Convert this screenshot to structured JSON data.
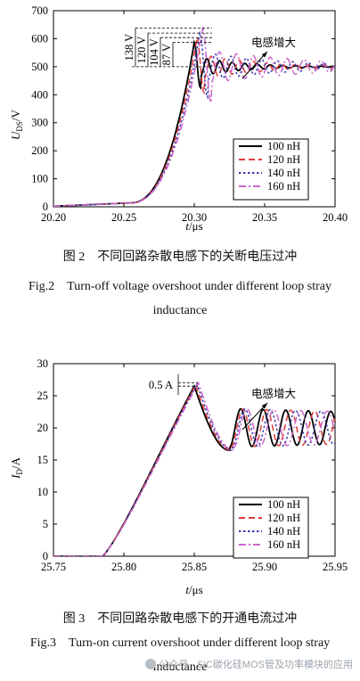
{
  "chart_data": [
    {
      "type": "line",
      "ylabel_main": "U",
      "ylabel_sub": "DS",
      "ylabel_unit": "/V",
      "xlabel_main": "t",
      "xlabel_unit": "/μs",
      "xlim": [
        20.2,
        20.4
      ],
      "ylim": [
        0,
        700
      ],
      "xticks": [
        "20.20",
        "20.25",
        "20.30",
        "20.35",
        "20.40"
      ],
      "xtick_values": [
        20.2,
        20.25,
        20.3,
        20.35,
        20.4
      ],
      "yticks": [
        "0",
        "100",
        "200",
        "300",
        "400",
        "500",
        "600",
        "700"
      ],
      "ytick_values": [
        0,
        100,
        200,
        300,
        400,
        500,
        600,
        700
      ],
      "legend_position": "center-right",
      "series": [
        {
          "name": "100 nH",
          "color": "#000000",
          "dash": "solid",
          "overshoot": 87,
          "peak_t": 20.3,
          "ringing_period": 0.009,
          "decay": 0.03
        },
        {
          "name": "120 nH",
          "color": "#e03c3c",
          "dash": "dash",
          "overshoot": 104,
          "peak_t": 20.302,
          "ringing_period": 0.01,
          "decay": 0.045
        },
        {
          "name": "140 nH",
          "color": "#3b3bb3",
          "dash": "dot",
          "overshoot": 120,
          "peak_t": 20.304,
          "ringing_period": 0.011,
          "decay": 0.06
        },
        {
          "name": "160 nH",
          "color": "#cc66cc",
          "dash": "dashdot",
          "overshoot": 138,
          "peak_t": 20.306,
          "ringing_period": 0.012,
          "decay": 0.08
        }
      ],
      "steady_value": 500,
      "annotations": [
        "138 V",
        "120 V",
        "104 V",
        "87 V"
      ],
      "arrow_label": "电感增大"
    },
    {
      "type": "line",
      "ylabel_main": "I",
      "ylabel_sub": "D",
      "ylabel_unit": "/A",
      "xlabel_main": "t",
      "xlabel_unit": "/μs",
      "xlim": [
        25.75,
        25.95
      ],
      "ylim": [
        0,
        30
      ],
      "xticks": [
        "25.75",
        "25.80",
        "25.85",
        "25.90",
        "25.95"
      ],
      "xtick_values": [
        25.75,
        25.8,
        25.85,
        25.9,
        25.95
      ],
      "yticks": [
        "0",
        "5",
        "10",
        "15",
        "20",
        "25",
        "30"
      ],
      "ytick_values": [
        0,
        5,
        10,
        15,
        20,
        25,
        30
      ],
      "legend_position": "bottom-right",
      "series": [
        {
          "name": "100 nH",
          "color": "#000000",
          "dash": "solid",
          "peak": 26.5,
          "peak_t": 25.85,
          "ringing_period": 0.016
        },
        {
          "name": "120 nH",
          "color": "#e03c3c",
          "dash": "dash",
          "peak": 26.7,
          "peak_t": 25.851,
          "ringing_period": 0.017
        },
        {
          "name": "140 nH",
          "color": "#3b3bb3",
          "dash": "dot",
          "peak": 26.85,
          "peak_t": 25.852,
          "ringing_period": 0.018
        },
        {
          "name": "160 nH",
          "color": "#cc66cc",
          "dash": "dashdot",
          "peak": 27.0,
          "peak_t": 25.853,
          "ringing_period": 0.019
        }
      ],
      "steady_value": 20,
      "annotations": [
        "0.5 A"
      ],
      "arrow_label": "电感增大"
    }
  ],
  "captions": {
    "fig2_cn": "图 2　不同回路杂散电感下的关断电压过冲",
    "fig2_en_line1": "Fig.2　Turn-off voltage overshoot under different loop stray",
    "fig2_en_line2": "inductance",
    "fig3_cn": "图 3　不同回路杂散电感下的开通电流过冲",
    "fig3_en_line1": "Fig.3　Turn-on current overshoot under different loop stray",
    "fig3_en_line2": "inductance"
  },
  "watermark": "公众号 · SiC碳化硅MOS管及功率模块的应用"
}
